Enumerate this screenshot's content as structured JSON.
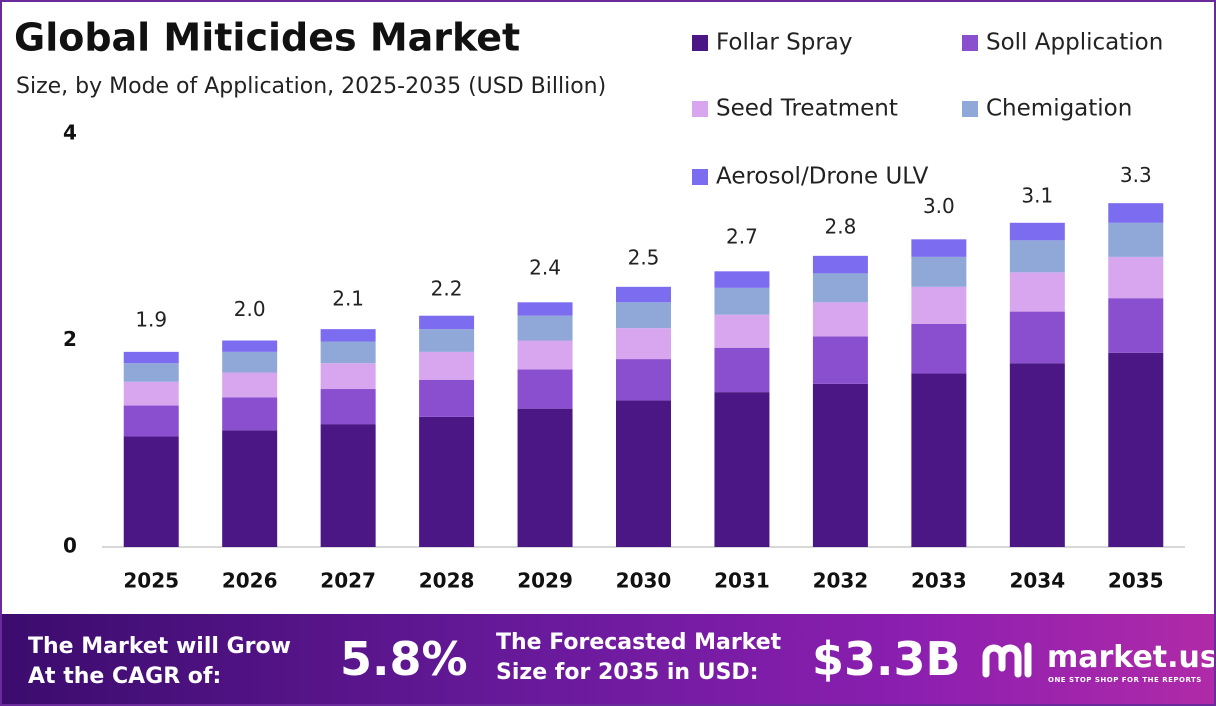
{
  "chart_data": {
    "type": "stacked_bar",
    "title": "Global Miticides Market",
    "subtitle": "Size, by Mode of Application, 2025-2035 (USD Billion)",
    "categories": [
      "2025",
      "2026",
      "2027",
      "2028",
      "2029",
      "2030",
      "2031",
      "2032",
      "2033",
      "2034",
      "2035"
    ],
    "series": [
      {
        "name": "Follar Spray",
        "color": "#4b1784",
        "values": [
          1.07,
          1.13,
          1.19,
          1.26,
          1.34,
          1.42,
          1.5,
          1.58,
          1.68,
          1.78,
          1.88
        ]
      },
      {
        "name": "Soll Application",
        "color": "#8a4fcf",
        "values": [
          0.3,
          0.32,
          0.34,
          0.36,
          0.38,
          0.4,
          0.43,
          0.46,
          0.48,
          0.5,
          0.53
        ]
      },
      {
        "name": "Seed Treatment",
        "color": "#d7a6ee",
        "values": [
          0.23,
          0.24,
          0.25,
          0.27,
          0.28,
          0.3,
          0.32,
          0.33,
          0.36,
          0.38,
          0.4
        ]
      },
      {
        "name": "Chemigation",
        "color": "#8fa8d8",
        "values": [
          0.18,
          0.2,
          0.21,
          0.22,
          0.24,
          0.25,
          0.26,
          0.28,
          0.29,
          0.31,
          0.33
        ]
      },
      {
        "name": "Aerosol/Drone ULV",
        "color": "#7b6cf0",
        "values": [
          0.11,
          0.11,
          0.12,
          0.13,
          0.13,
          0.15,
          0.16,
          0.17,
          0.17,
          0.17,
          0.19
        ]
      }
    ],
    "totals": {
      "values": [
        1.9,
        2.0,
        2.1,
        2.2,
        2.4,
        2.5,
        2.7,
        2.8,
        3.0,
        3.1,
        3.3
      ],
      "value_labels": [
        "1.9",
        "2.0",
        "2.1",
        "2.2",
        "2.4",
        "2.5",
        "2.7",
        "2.8",
        "3.0",
        "3.1",
        "3.3"
      ]
    },
    "ylim": [
      0,
      4
    ],
    "yticks": [
      0,
      2,
      4
    ],
    "grid": false
  },
  "banner": {
    "cagr_label": "The Market will Grow At the CAGR of:",
    "cagr": "5.8%",
    "forecast_label": "The Forecasted Market Size for 2035 in USD:",
    "forecast": "$3.3B",
    "logo": "market.us",
    "tagline": "ONE STOP SHOP FOR THE REPORTS"
  }
}
